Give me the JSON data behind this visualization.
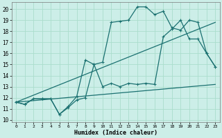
{
  "bg_color": "#cceee8",
  "grid_color": "#aaddcc",
  "line_color": "#1a7070",
  "xlabel": "Humidex (Indice chaleur)",
  "xlim": [
    -0.5,
    23.5
  ],
  "ylim": [
    9.8,
    20.6
  ],
  "yticks": [
    10,
    11,
    12,
    13,
    14,
    15,
    16,
    17,
    18,
    19,
    20
  ],
  "xticks": [
    0,
    1,
    2,
    3,
    4,
    5,
    6,
    7,
    8,
    9,
    10,
    11,
    12,
    13,
    14,
    15,
    16,
    17,
    18,
    19,
    20,
    21,
    22,
    23
  ],
  "line1_x": [
    0,
    1,
    2,
    3,
    4,
    5,
    6,
    7,
    8,
    9,
    10,
    11,
    12,
    13,
    14,
    15,
    16,
    17,
    18,
    19,
    20,
    21,
    22,
    23
  ],
  "line1_y": [
    11.6,
    11.4,
    11.9,
    11.9,
    11.9,
    10.5,
    11.1,
    11.8,
    12.0,
    15.0,
    15.2,
    18.8,
    18.9,
    19.0,
    20.2,
    20.2,
    19.5,
    19.8,
    18.3,
    18.1,
    19.0,
    18.8,
    16.0,
    14.8
  ],
  "line2_x": [
    0,
    1,
    2,
    3,
    4,
    5,
    6,
    7,
    8,
    9,
    10,
    11,
    12,
    13,
    14,
    15,
    16,
    17,
    18,
    19,
    20,
    21,
    22,
    23
  ],
  "line2_y": [
    11.6,
    11.4,
    11.9,
    11.9,
    11.9,
    10.5,
    11.2,
    12.1,
    15.4,
    15.0,
    13.0,
    13.3,
    13.0,
    13.3,
    13.2,
    13.3,
    13.2,
    17.5,
    18.2,
    19.0,
    17.3,
    17.3,
    16.0,
    14.8
  ],
  "line3_x": [
    0,
    23
  ],
  "line3_y": [
    11.6,
    13.2
  ],
  "line4_x": [
    0,
    23
  ],
  "line4_y": [
    11.6,
    18.8
  ]
}
